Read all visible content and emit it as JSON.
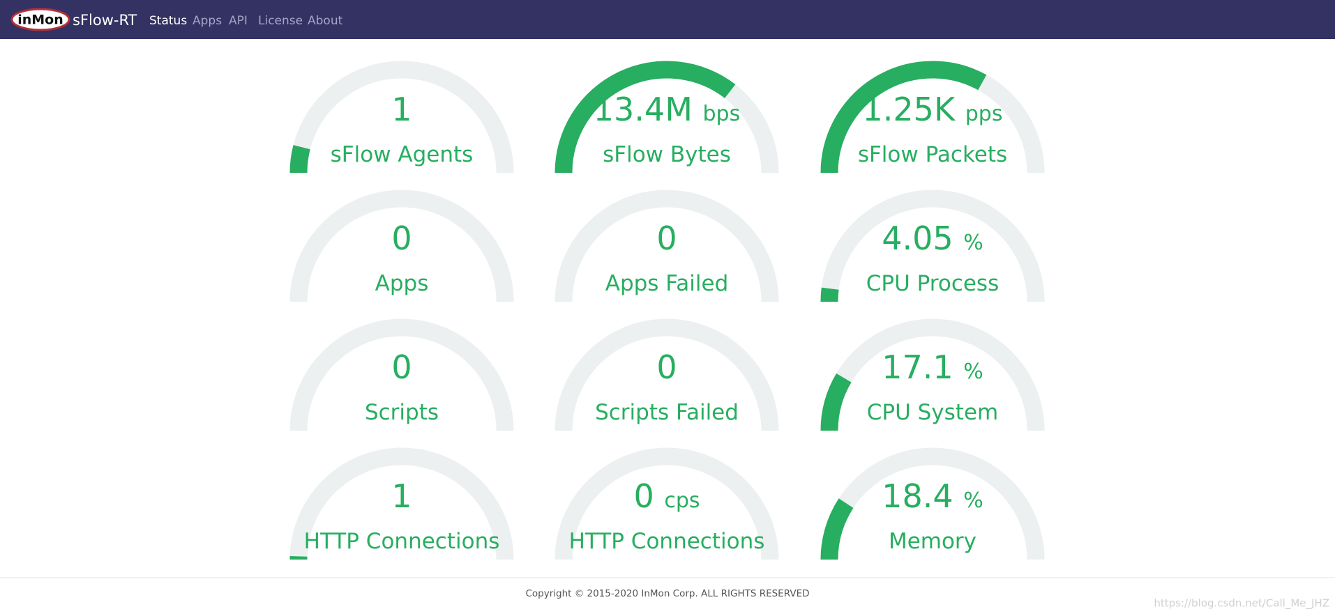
{
  "navbar": {
    "brand_logo": "inMon",
    "brand": "sFlow-RT",
    "links": [
      "Status",
      "Apps",
      "API",
      "License",
      "About"
    ],
    "active": 0
  },
  "gauges": [
    {
      "value": "1",
      "label": "sFlow Agents",
      "level": 8
    },
    {
      "value": "13.4M",
      "unit": "bps",
      "label": "sFlow Bytes",
      "level": 71
    },
    {
      "value": "1.25K",
      "unit": "pps",
      "label": "sFlow Packets",
      "level": 66
    },
    {
      "value": "0",
      "label": "Apps",
      "level": 0
    },
    {
      "value": "0",
      "label": "Apps Failed",
      "level": 0
    },
    {
      "value": "4.05",
      "unit": "%",
      "label": "CPU Process",
      "level": 4.05
    },
    {
      "value": "0",
      "label": "Scripts",
      "level": 0
    },
    {
      "value": "0",
      "label": "Scripts Failed",
      "level": 0
    },
    {
      "value": "17.1",
      "unit": "%",
      "label": "CPU System",
      "level": 17.1
    },
    {
      "value": "1",
      "label": "HTTP Connections",
      "level": 1
    },
    {
      "value": "0",
      "unit": "cps",
      "label": "HTTP Connections",
      "level": 0
    },
    {
      "value": "18.4",
      "unit": "%",
      "label": "Memory",
      "level": 18.4
    }
  ],
  "footer": {
    "copyright": "Copyright © 2015-2020 InMon Corp. ALL RIGHTS RESERVED"
  },
  "watermark": "https://blog.csdn.net/Call_Me_JHZ"
}
